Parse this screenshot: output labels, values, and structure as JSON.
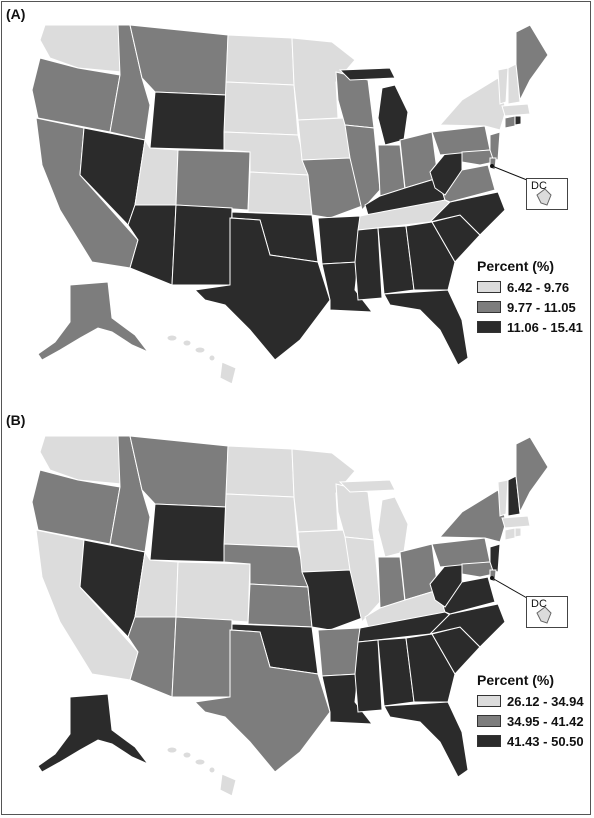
{
  "panels": [
    {
      "label": "(A)",
      "legend": {
        "title": "Percent (%)",
        "items": [
          {
            "range": "6.42 - 9.76",
            "color": "#dcdcdc"
          },
          {
            "range": "9.77 - 11.05",
            "color": "#7d7d7d"
          },
          {
            "range": "11.06 - 15.41",
            "color": "#2b2b2b"
          }
        ]
      },
      "dc_label": "DC"
    },
    {
      "label": "(B)",
      "legend": {
        "title": "Percent (%)",
        "items": [
          {
            "range": "26.12 - 34.94",
            "color": "#dcdcdc"
          },
          {
            "range": "34.95 - 41.42",
            "color": "#7d7d7d"
          },
          {
            "range": "41.43 - 50.50",
            "color": "#2b2b2b"
          }
        ]
      },
      "dc_label": "DC"
    }
  ]
}
